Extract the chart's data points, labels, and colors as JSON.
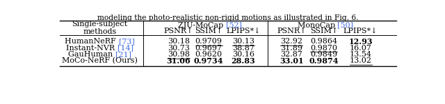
{
  "title_text": "modeling the photo-realistic non-rigid motions as illustrated in Fig. 6.",
  "col_method_line1": "Single-subject",
  "col_method_line2": "methods",
  "group1_pre": "ZJU-MoCap ",
  "group1_cite": "[52]",
  "group2_pre": "MonoCap ",
  "group2_cite": "[50]",
  "subheaders": [
    "PSNR↑",
    "SSIM↑",
    "LPIPS*↓",
    "PSNR↑",
    "SSIM↑",
    "LPIPS*↓"
  ],
  "rows": [
    {
      "method_pre": "HumanNeRF ",
      "method_cite": "[73]",
      "values": [
        "30.18",
        "0.9709",
        "30.13",
        "32.92",
        "0.9864",
        "12.93"
      ],
      "underline": [
        1,
        2,
        3
      ],
      "bold": [
        5
      ]
    },
    {
      "method_pre": "Instant-NVR ",
      "method_cite": "[14]",
      "values": [
        "30.73",
        "0.9697",
        "38.87",
        "31.89",
        "0.9870",
        "16.07"
      ],
      "underline": [
        4
      ],
      "bold": []
    },
    {
      "method_pre": "GauHuman ",
      "method_cite": "[21]",
      "values": [
        "30.98",
        "0.9620",
        "30.16",
        "32.87",
        "0.9849",
        "13.54"
      ],
      "underline": [
        0
      ],
      "bold": []
    },
    {
      "method_pre": "MoCo-NeRF (Ours)",
      "method_cite": "",
      "values": [
        "31.06",
        "0.9734",
        "28.83",
        "33.01",
        "0.9874",
        "13.02"
      ],
      "underline": [
        5
      ],
      "bold": [
        0,
        1,
        2,
        3,
        4
      ]
    }
  ],
  "ref_color": "#4169E1",
  "text_color": "#000000",
  "bg_color": "#ffffff",
  "font_size": 8.0,
  "figwidth": 6.4,
  "figheight": 1.51,
  "dpi": 100
}
